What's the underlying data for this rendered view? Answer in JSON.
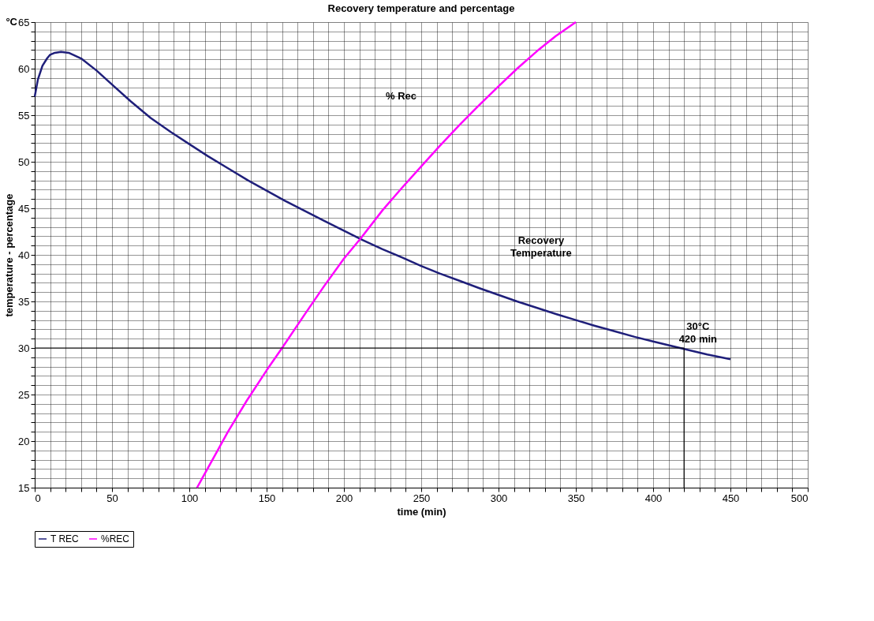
{
  "chart_data": {
    "type": "line",
    "title": "Recovery temperature and percentage",
    "xlabel": "time (min)",
    "ylabel": "temperature - percentage",
    "xlim": [
      0,
      500
    ],
    "ylim": [
      15,
      65
    ],
    "xticks": [
      0,
      {
        "value": 10,
        "label": null
      },
      {
        "value": 20,
        "label": null
      },
      {
        "value": 30,
        "label": null
      },
      {
        "value": 40,
        "label": null
      },
      50,
      {
        "value": 60,
        "label": null
      },
      {
        "value": 70,
        "label": null
      },
      {
        "value": 80,
        "label": null
      },
      {
        "value": 90,
        "label": null
      },
      100,
      {
        "value": 110,
        "label": null
      },
      {
        "value": 120,
        "label": null
      },
      {
        "value": 130,
        "label": null
      },
      {
        "value": 140,
        "label": null
      },
      150,
      {
        "value": 160,
        "label": null
      },
      {
        "value": 170,
        "label": null
      },
      {
        "value": 180,
        "label": null
      },
      {
        "value": 190,
        "label": null
      },
      200,
      {
        "value": 210,
        "label": null
      },
      {
        "value": 220,
        "label": null
      },
      {
        "value": 230,
        "label": null
      },
      {
        "value": 240,
        "label": null
      },
      250,
      {
        "value": 260,
        "label": null
      },
      {
        "value": 270,
        "label": null
      },
      {
        "value": 280,
        "label": null
      },
      {
        "value": 290,
        "label": null
      },
      300,
      {
        "value": 310,
        "label": null
      },
      {
        "value": 320,
        "label": null
      },
      {
        "value": 330,
        "label": null
      },
      {
        "value": 340,
        "label": null
      },
      350,
      {
        "value": 360,
        "label": null
      },
      {
        "value": 370,
        "label": null
      },
      {
        "value": 380,
        "label": null
      },
      {
        "value": 390,
        "label": null
      },
      400,
      {
        "value": 410,
        "label": null
      },
      {
        "value": 420,
        "label": null
      },
      {
        "value": 430,
        "label": null
      },
      {
        "value": 440,
        "label": null
      },
      450,
      {
        "value": 460,
        "label": null
      },
      {
        "value": 470,
        "label": null
      },
      {
        "value": 480,
        "label": null
      },
      {
        "value": 490,
        "label": null
      },
      500
    ],
    "yticks": [
      15,
      {
        "value": 16,
        "label": null
      },
      {
        "value": 17,
        "label": null
      },
      {
        "value": 18,
        "label": null
      },
      {
        "value": 19,
        "label": null
      },
      20,
      {
        "value": 21,
        "label": null
      },
      {
        "value": 22,
        "label": null
      },
      {
        "value": 23,
        "label": null
      },
      {
        "value": 24,
        "label": null
      },
      25,
      {
        "value": 26,
        "label": null
      },
      {
        "value": 27,
        "label": null
      },
      {
        "value": 28,
        "label": null
      },
      {
        "value": 29,
        "label": null
      },
      30,
      {
        "value": 31,
        "label": null
      },
      {
        "value": 32,
        "label": null
      },
      {
        "value": 33,
        "label": null
      },
      {
        "value": 34,
        "label": null
      },
      35,
      {
        "value": 36,
        "label": null
      },
      {
        "value": 37,
        "label": null
      },
      {
        "value": 38,
        "label": null
      },
      {
        "value": 39,
        "label": null
      },
      40,
      {
        "value": 41,
        "label": null
      },
      {
        "value": 42,
        "label": null
      },
      {
        "value": 43,
        "label": null
      },
      {
        "value": 44,
        "label": null
      },
      45,
      {
        "value": 46,
        "label": null
      },
      {
        "value": 47,
        "label": null
      },
      {
        "value": 48,
        "label": null
      },
      {
        "value": 49,
        "label": null
      },
      50,
      {
        "value": 51,
        "label": null
      },
      {
        "value": 52,
        "label": null
      },
      {
        "value": 53,
        "label": null
      },
      {
        "value": 54,
        "label": null
      },
      55,
      {
        "value": 56,
        "label": null
      },
      {
        "value": 57,
        "label": null
      },
      {
        "value": 58,
        "label": null
      },
      {
        "value": 59,
        "label": null
      },
      60,
      {
        "value": 61,
        "label": null
      },
      {
        "value": 62,
        "label": null
      },
      {
        "value": 63,
        "label": null
      },
      {
        "value": 64,
        "label": null
      },
      65
    ],
    "grid": true,
    "legend": "bottom",
    "series": [
      {
        "name": "T REC",
        "color": "#1f1f7a",
        "x": [
          0,
          2,
          5,
          8,
          10,
          13,
          17,
          22,
          30,
          40,
          50,
          62,
          75,
          88,
          100,
          112,
          125,
          138,
          150,
          162,
          175,
          188,
          200,
          212,
          225,
          238,
          250,
          262,
          275,
          288,
          300,
          312,
          325,
          338,
          350,
          362,
          375,
          388,
          400,
          410,
          420,
          435,
          450
        ],
        "values": [
          57,
          58.8,
          60.3,
          61.1,
          61.5,
          61.7,
          61.8,
          61.7,
          61.1,
          59.8,
          58.3,
          56.5,
          54.7,
          53.2,
          51.9,
          50.6,
          49.3,
          48.0,
          46.9,
          45.8,
          44.7,
          43.6,
          42.6,
          41.6,
          40.6,
          39.7,
          38.8,
          38.0,
          37.2,
          36.4,
          35.7,
          35.0,
          34.3,
          33.6,
          33.0,
          32.4,
          31.8,
          31.2,
          30.7,
          30.3,
          29.9,
          29.3,
          28.8
        ]
      },
      {
        "name": "%REC",
        "color": "#ff00ff",
        "x": [
          105,
          115,
          125,
          137,
          150,
          160,
          175,
          187,
          200,
          211,
          225,
          237,
          250,
          262,
          275,
          287,
          300,
          312,
          325,
          337,
          350
        ],
        "values": [
          15,
          18,
          21,
          24.3,
          27.6,
          30,
          33.7,
          36.6,
          39.6,
          41.8,
          44.8,
          47.1,
          49.5,
          51.7,
          54,
          56,
          58.1,
          60,
          61.9,
          63.5,
          65
        ]
      },
      {
        "color": "#000000",
        "x": [
          0,
          420,
          420
        ],
        "values": [
          30,
          30,
          15
        ]
      }
    ],
    "annotations": [
      "°C",
      "% Rec",
      "Recovery\nTemperature",
      "30°C\n420 min"
    ]
  }
}
